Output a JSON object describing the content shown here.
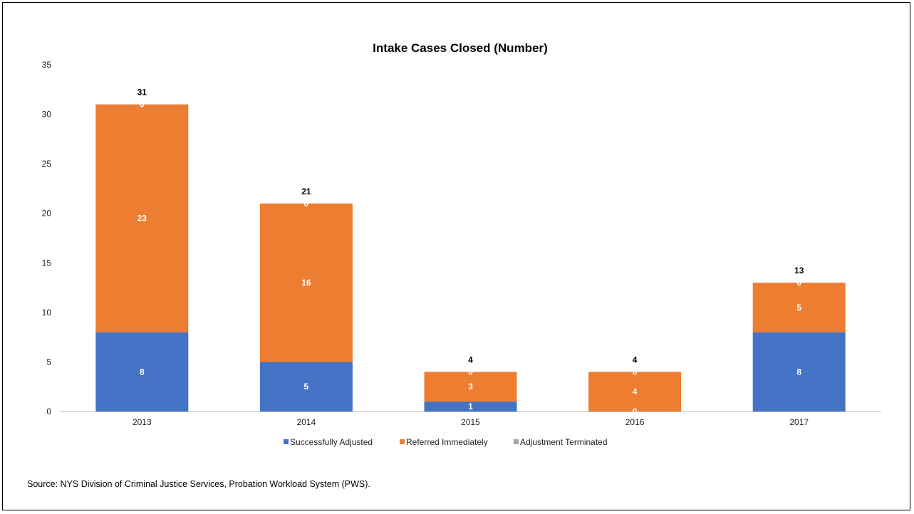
{
  "chart_data": {
    "type": "bar",
    "stacked": true,
    "title": "Intake Cases Closed (Number)",
    "categories": [
      "2013",
      "2014",
      "2015",
      "2016",
      "2017"
    ],
    "series": [
      {
        "name": "Successfully Adjusted",
        "color": "#4472C4",
        "values": [
          8,
          5,
          1,
          0,
          8
        ]
      },
      {
        "name": "Referred Immediately",
        "color": "#ED7D31",
        "values": [
          23,
          16,
          3,
          4,
          5
        ]
      },
      {
        "name": "Adjustment Terminated",
        "color": "#A5A5A5",
        "values": [
          0,
          0,
          0,
          0,
          0
        ]
      }
    ],
    "totals": [
      31,
      21,
      4,
      4,
      13
    ],
    "ylim": [
      0,
      35
    ],
    "yticks": [
      0,
      5,
      10,
      15,
      20,
      25,
      30,
      35
    ],
    "grid": false,
    "legend": "bottom"
  },
  "source": "Source: NYS Division of Criminal Justice Services, Probation Workload System (PWS)."
}
